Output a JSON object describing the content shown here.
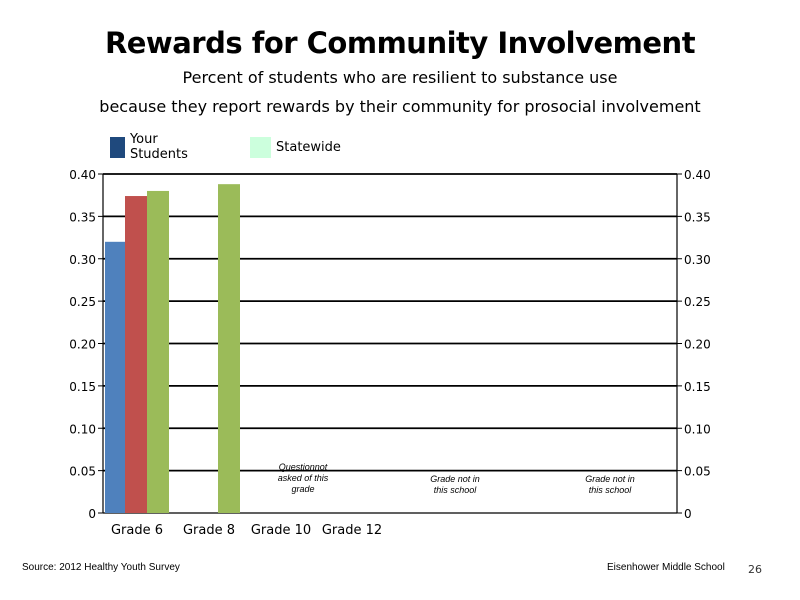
{
  "title": "Rewards for Community Involvement",
  "subtitle_line1": "Percent of students who are resilient to substance use",
  "subtitle_line2": "because they report rewards by their community for prosocial involvement",
  "legend": [
    {
      "label": "Your Students",
      "color": "#1f497d"
    },
    {
      "label": "Statewide",
      "color": "#ccffdd"
    }
  ],
  "colors": {
    "grade6_your_students": "#4f81bd",
    "grade6_extra_series": "#c0504d",
    "statewide": "#9bbb59",
    "gridline": "#000000"
  },
  "chart_data": {
    "type": "bar",
    "categories": [
      "Grade 6",
      "Grade 8",
      "Grade 10",
      "Grade 12"
    ],
    "series": [
      {
        "name": "Your Students",
        "values": [
          0.32,
          null,
          null,
          null
        ]
      },
      {
        "values": [
          0.374,
          null,
          null,
          null
        ]
      },
      {
        "name": "Statewide",
        "values": [
          0.38,
          0.388,
          null,
          null
        ]
      }
    ],
    "title": "Rewards for Community Involvement",
    "ylim": [
      0,
      0.4
    ],
    "yticks": [
      "0",
      "0.05",
      "0.10",
      "0.15",
      "0.20",
      "0.25",
      "0.30",
      "0.35",
      "0.40"
    ],
    "grid": true,
    "secondary_axis": true,
    "legend_position": "top-left",
    "annotations": [
      {
        "category": "Grade 10",
        "lines": [
          "Questionnot",
          "asked of this",
          "grade"
        ]
      },
      {
        "category": "Grade 12",
        "lines": [
          "Grade not in",
          "this school"
        ]
      },
      {
        "category": "Grade 12",
        "lines": [
          "Grade not in",
          "this school"
        ]
      }
    ]
  },
  "footer": {
    "source": "Source: 2012 Healthy Youth Survey",
    "school": "Eisenhower Middle  School",
    "page_number": "26"
  }
}
